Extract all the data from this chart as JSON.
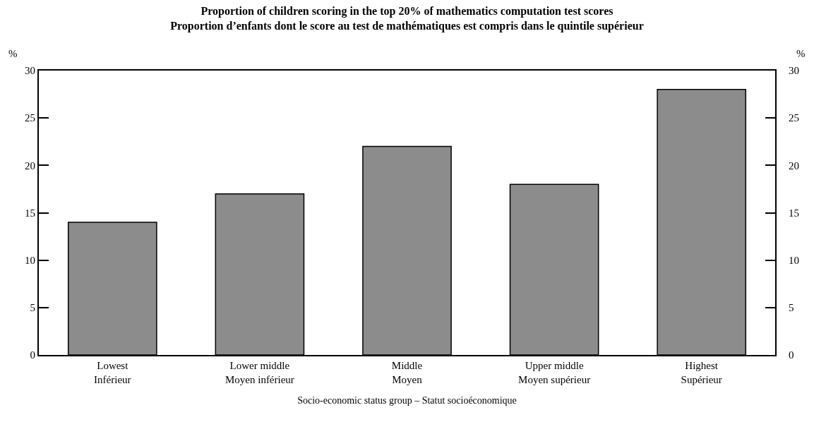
{
  "chart_data": {
    "type": "bar",
    "title": "Proportion of children scoring in the top 20% of mathematics computation test scores\nProportion d’enfants dont le score au test de mathématiques est compris dans le quintile supérieur",
    "xlabel": "Socio-economic status group – Statut socioéconomique",
    "ylabel": "%",
    "y2label": "%",
    "categories": [
      "Lowest\nInférieur",
      "Lower middle\nMoyen inférieur",
      "Middle\nMoyen",
      "Upper middle\nMoyen supérieur",
      "Highest\nSupérieur"
    ],
    "values": [
      14,
      17,
      22,
      18,
      28
    ],
    "color": "#8c8c8c",
    "ylim": [
      0,
      30
    ],
    "yticks": [
      0,
      5,
      10,
      15,
      20,
      25,
      30
    ],
    "y2lim": [
      0,
      30
    ],
    "y2ticks": [
      0,
      5,
      10,
      15,
      20,
      25,
      30
    ]
  }
}
